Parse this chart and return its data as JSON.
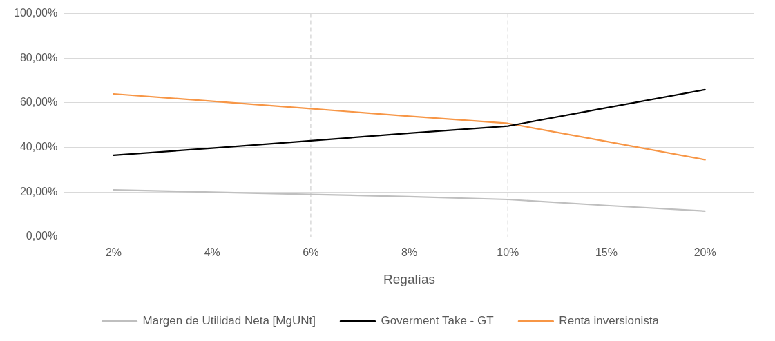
{
  "chart_data": {
    "type": "line",
    "xlabel": "Regalías",
    "categories": [
      "2%",
      "4%",
      "6%",
      "8%",
      "10%",
      "15%",
      "20%"
    ],
    "series": [
      {
        "name": "Margen de Utilidad Neta [MgUNt]",
        "color": "#bfbfbf",
        "values": [
          21.0,
          20.0,
          19.0,
          18.0,
          16.7,
          14.0,
          11.5
        ]
      },
      {
        "name": "Goverment Take - GT",
        "color": "#000000",
        "values": [
          36.5,
          39.7,
          43.0,
          46.4,
          49.6,
          57.8,
          65.9
        ]
      },
      {
        "name": "Renta inversionista",
        "color": "#f79646",
        "values": [
          64.0,
          60.7,
          57.4,
          54.0,
          50.8,
          42.7,
          34.5
        ]
      }
    ],
    "ylim": [
      0,
      100
    ],
    "yticks": [
      {
        "value": 0,
        "label": "0,00%"
      },
      {
        "value": 20,
        "label": "20,00%"
      },
      {
        "value": 40,
        "label": "40,00%"
      },
      {
        "value": 60,
        "label": "60,00%"
      },
      {
        "value": 80,
        "label": "80,00%"
      },
      {
        "value": 100,
        "label": "100,00%"
      }
    ],
    "grid": "y",
    "legend": "bottom",
    "marker": "none",
    "line_style": "solid",
    "ref_lines": [
      {
        "axis": "x",
        "value": "6%",
        "color": "#d9d9d9",
        "line_style": "dashed"
      },
      {
        "axis": "x",
        "value": "10%",
        "color": "#d9d9d9",
        "line_style": "dashed"
      }
    ]
  }
}
